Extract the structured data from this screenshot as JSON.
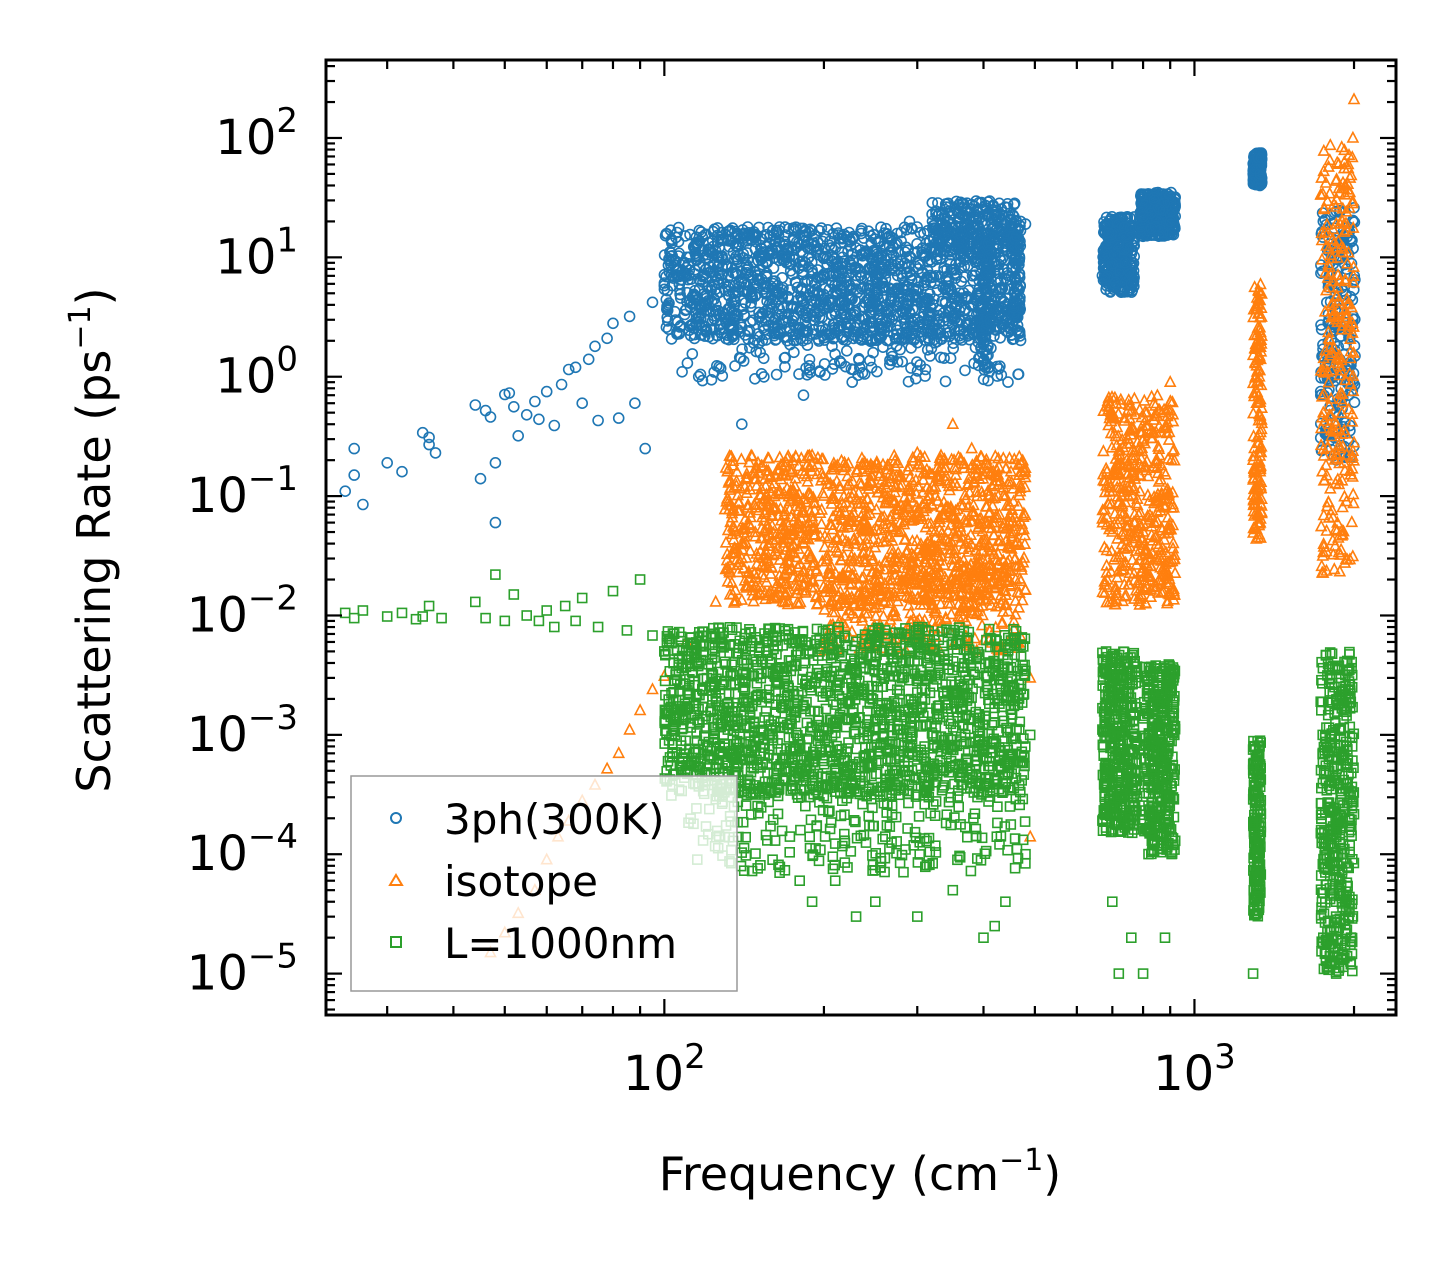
{
  "chart_data": {
    "type": "scatter",
    "xscale": "log",
    "yscale": "log",
    "xlabel": "Frequency (cm",
    "xlabel_sup": "−1",
    "xlabel_end": ")",
    "ylabel": "Scattering Rate (ps",
    "ylabel_sup": "−1",
    "ylabel_end": ")",
    "xlim": [
      23,
      2400
    ],
    "ylim": [
      4.5e-06,
      450
    ],
    "x_ticks": [
      {
        "value": 100,
        "base": "10",
        "exp": "2"
      },
      {
        "value": 1000,
        "base": "10",
        "exp": "3"
      }
    ],
    "y_ticks": [
      {
        "value": 100,
        "base": "10",
        "exp": "2"
      },
      {
        "value": 10,
        "base": "10",
        "exp": "1"
      },
      {
        "value": 1,
        "base": "10",
        "exp": "0"
      },
      {
        "value": 0.1,
        "base": "10",
        "exp": "−1"
      },
      {
        "value": 0.01,
        "base": "10",
        "exp": "−2"
      },
      {
        "value": 0.001,
        "base": "10",
        "exp": "−3"
      },
      {
        "value": 0.0001,
        "base": "10",
        "exp": "−4"
      },
      {
        "value": 1e-05,
        "base": "10",
        "exp": "−5"
      }
    ],
    "legend_position": "lower-left",
    "series": [
      {
        "name": "3ph(300K)",
        "marker": "circle",
        "color": "#1f77b4",
        "points": [
          [
            25,
            0.11
          ],
          [
            26,
            0.25
          ],
          [
            26,
            0.15
          ],
          [
            27,
            0.085
          ],
          [
            30,
            0.19
          ],
          [
            32,
            0.16
          ],
          [
            35,
            0.34
          ],
          [
            36,
            0.31
          ],
          [
            36,
            0.27
          ],
          [
            37,
            0.23
          ],
          [
            44,
            0.58
          ],
          [
            45,
            0.14
          ],
          [
            46,
            0.52
          ],
          [
            47,
            0.46
          ],
          [
            48,
            0.06
          ],
          [
            48,
            0.19
          ],
          [
            50,
            0.71
          ],
          [
            51,
            0.73
          ],
          [
            52,
            0.56
          ],
          [
            53,
            0.32
          ],
          [
            55,
            0.48
          ],
          [
            57,
            0.62
          ],
          [
            58,
            0.44
          ],
          [
            60,
            0.75
          ],
          [
            62,
            0.39
          ],
          [
            64,
            0.86
          ],
          [
            66,
            1.15
          ],
          [
            68,
            1.2
          ],
          [
            70,
            0.6
          ],
          [
            72,
            1.4
          ],
          [
            74,
            1.8
          ],
          [
            75,
            0.43
          ],
          [
            78,
            2.1
          ],
          [
            80,
            2.8
          ],
          [
            82,
            0.45
          ],
          [
            86,
            3.2
          ],
          [
            88,
            0.6
          ],
          [
            92,
            0.25
          ],
          [
            95,
            4.2
          ],
          [
            100,
            5.8
          ],
          [
            104,
            9.6
          ],
          [
            108,
            1.1
          ],
          [
            140,
            0.4
          ],
          [
            183,
            0.7
          ],
          [
            120,
            8
          ],
          [
            135,
            11
          ],
          [
            150,
            7
          ],
          [
            170,
            9
          ],
          [
            200,
            10
          ],
          [
            230,
            12
          ],
          [
            260,
            16
          ],
          [
            290,
            20
          ],
          [
            320,
            23
          ],
          [
            340,
            28
          ],
          [
            360,
            20
          ],
          [
            380,
            16
          ],
          [
            400,
            7
          ],
          [
            410,
            1.1
          ],
          [
            420,
            14
          ],
          [
            450,
            18
          ],
          [
            470,
            20
          ],
          [
            480,
            19
          ],
          [
            690,
            16
          ],
          [
            720,
            13
          ],
          [
            740,
            9
          ],
          [
            760,
            6
          ],
          [
            800,
            22
          ],
          [
            820,
            26
          ],
          [
            840,
            30
          ],
          [
            860,
            25
          ],
          [
            900,
            20
          ],
          [
            1300,
            55
          ],
          [
            1320,
            68
          ],
          [
            1330,
            50
          ],
          [
            1750,
            20
          ],
          [
            1800,
            12
          ],
          [
            1850,
            5
          ],
          [
            1900,
            14
          ],
          [
            1950,
            18
          ],
          [
            2000,
            26
          ]
        ],
        "bands": [
          {
            "x_range": [
              100,
              470
            ],
            "y_range": [
              2,
              18
            ],
            "count": 1500
          },
          {
            "x_range": [
              110,
              470
            ],
            "y_range": [
              0.9,
              6
            ],
            "count": 260
          },
          {
            "x_range": [
              320,
              460
            ],
            "y_range": [
              10,
              30
            ],
            "count": 220
          },
          {
            "x_range": [
              395,
              412
            ],
            "y_range": [
              1.1,
              14
            ],
            "count": 80
          },
          {
            "x_range": [
              455,
              470
            ],
            "y_range": [
              2.3,
              22
            ],
            "count": 70
          },
          {
            "x_range": [
              670,
              770
            ],
            "y_range": [
              5,
              22
            ],
            "count": 320
          },
          {
            "x_range": [
              790,
              920
            ],
            "y_range": [
              15,
              35
            ],
            "count": 320
          },
          {
            "x_range": [
              1290,
              1340
            ],
            "y_range": [
              40,
              75
            ],
            "count": 200
          },
          {
            "x_range": [
              1730,
              2010
            ],
            "y_range": [
              0.2,
              25
            ],
            "count": 220
          }
        ]
      },
      {
        "name": "isotope",
        "marker": "triangle",
        "color": "#ff7f0e",
        "points": [
          [
            47,
            1.5e-05
          ],
          [
            50,
            2.2e-05
          ],
          [
            53,
            3.2e-05
          ],
          [
            57,
            5e-05
          ],
          [
            60,
            9e-05
          ],
          [
            63,
            0.00014
          ],
          [
            66,
            0.00019
          ],
          [
            70,
            0.00028
          ],
          [
            74,
            0.00038
          ],
          [
            78,
            0.00052
          ],
          [
            82,
            0.0007
          ],
          [
            86,
            0.0011
          ],
          [
            90,
            0.0016
          ],
          [
            95,
            0.0024
          ],
          [
            100,
            0.0031
          ],
          [
            110,
            0.006
          ],
          [
            125,
            0.013
          ],
          [
            140,
            0.03
          ],
          [
            170,
            0.06
          ],
          [
            200,
            0.1
          ],
          [
            250,
            0.17
          ],
          [
            300,
            0.23
          ],
          [
            350,
            0.4
          ],
          [
            380,
            0.25
          ],
          [
            420,
            0.06
          ],
          [
            460,
            0.02
          ],
          [
            490,
            0.003
          ],
          [
            490,
            0.00014
          ],
          [
            700,
            0.05
          ],
          [
            760,
            0.12
          ],
          [
            800,
            0.3
          ],
          [
            870,
            0.5
          ],
          [
            900,
            0.9
          ],
          [
            1290,
            0.2
          ],
          [
            1320,
            4
          ],
          [
            1330,
            5
          ],
          [
            1750,
            0.5
          ],
          [
            1800,
            1.5
          ],
          [
            1850,
            3
          ],
          [
            1900,
            20
          ],
          [
            1950,
            60
          ],
          [
            1990,
            100
          ],
          [
            2000,
            210
          ]
        ],
        "bands": [
          {
            "x_range": [
              130,
              480
            ],
            "y_range": [
              0.012,
              0.22
            ],
            "count": 1300
          },
          {
            "x_range": [
              200,
              470
            ],
            "y_range": [
              0.005,
              0.03
            ],
            "count": 300
          },
          {
            "x_range": [
              670,
              920
            ],
            "y_range": [
              0.012,
              0.7
            ],
            "count": 450
          },
          {
            "x_range": [
              1290,
              1340
            ],
            "y_range": [
              0.04,
              6
            ],
            "count": 150
          },
          {
            "x_range": [
              1730,
              2000
            ],
            "y_range": [
              0.02,
              90
            ],
            "count": 260
          }
        ]
      },
      {
        "name": "L=1000nm",
        "marker": "square",
        "color": "#2ca02c",
        "points": [
          [
            25,
            0.0105
          ],
          [
            26,
            0.0095
          ],
          [
            27,
            0.011
          ],
          [
            30,
            0.0098
          ],
          [
            32,
            0.0105
          ],
          [
            34,
            0.0093
          ],
          [
            35,
            0.0098
          ],
          [
            36,
            0.012
          ],
          [
            38,
            0.0095
          ],
          [
            44,
            0.013
          ],
          [
            46,
            0.0095
          ],
          [
            48,
            0.022
          ],
          [
            50,
            0.009
          ],
          [
            52,
            0.015
          ],
          [
            55,
            0.01
          ],
          [
            58,
            0.009
          ],
          [
            60,
            0.011
          ],
          [
            62,
            0.008
          ],
          [
            65,
            0.012
          ],
          [
            68,
            0.009
          ],
          [
            70,
            0.014
          ],
          [
            75,
            0.008
          ],
          [
            80,
            0.016
          ],
          [
            85,
            0.0075
          ],
          [
            90,
            0.02
          ],
          [
            95,
            0.0068
          ],
          [
            100,
            0.005
          ],
          [
            160,
            9e-05
          ],
          [
            165,
            7e-05
          ],
          [
            180,
            6e-05
          ],
          [
            190,
            4e-05
          ],
          [
            210,
            6e-05
          ],
          [
            230,
            3e-05
          ],
          [
            250,
            4e-05
          ],
          [
            300,
            3e-05
          ],
          [
            350,
            5e-05
          ],
          [
            400,
            2e-05
          ],
          [
            420,
            2.5e-05
          ],
          [
            440,
            4e-05
          ],
          [
            480,
            0.0001
          ],
          [
            490,
            0.001
          ],
          [
            700,
            4e-05
          ],
          [
            720,
            1e-05
          ],
          [
            760,
            2e-05
          ],
          [
            800,
            1e-05
          ],
          [
            880,
            2e-05
          ],
          [
            1290,
            1e-05
          ],
          [
            1320,
            0.0001
          ],
          [
            1750,
            2e-05
          ],
          [
            1800,
            1.2e-05
          ],
          [
            1850,
            3e-05
          ],
          [
            1900,
            0.0001
          ],
          [
            1950,
            3e-05
          ]
        ],
        "bands": [
          {
            "x_range": [
              100,
              480
            ],
            "y_range": [
              0.0003,
              0.008
            ],
            "count": 1700
          },
          {
            "x_range": [
              110,
              480
            ],
            "y_range": [
              7e-05,
              0.0008
            ],
            "count": 320
          },
          {
            "x_range": [
              670,
              780
            ],
            "y_range": [
              0.00015,
              0.005
            ],
            "count": 400
          },
          {
            "x_range": [
              800,
              920
            ],
            "y_range": [
              0.0001,
              0.004
            ],
            "count": 380
          },
          {
            "x_range": [
              1290,
              1335
            ],
            "y_range": [
              3e-05,
              0.0009
            ],
            "count": 180
          },
          {
            "x_range": [
              1730,
              2000
            ],
            "y_range": [
              1e-05,
              0.005
            ],
            "count": 420
          }
        ]
      }
    ]
  }
}
